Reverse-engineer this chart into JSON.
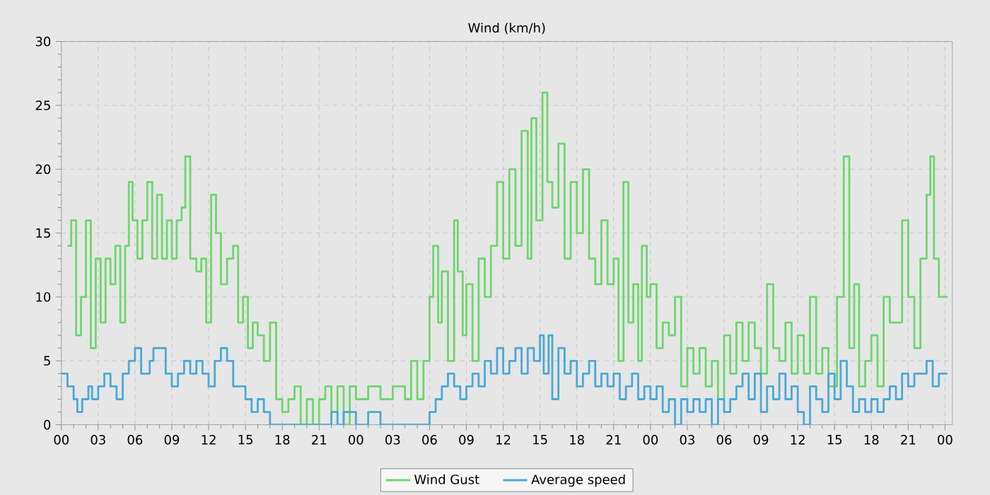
{
  "chart_data": {
    "type": "step",
    "title": "Wind (km/h)",
    "xlim": [
      0,
      72.6
    ],
    "ylim": [
      0,
      30
    ],
    "xticks": [
      {
        "value": 0,
        "label": "00"
      },
      {
        "value": 3,
        "label": "03"
      },
      {
        "value": 6,
        "label": "06"
      },
      {
        "value": 9,
        "label": "09"
      },
      {
        "value": 12,
        "label": "12"
      },
      {
        "value": 15,
        "label": "15"
      },
      {
        "value": 18,
        "label": "18"
      },
      {
        "value": 21,
        "label": "21"
      },
      {
        "value": 24,
        "label": "00"
      },
      {
        "value": 27,
        "label": "03"
      },
      {
        "value": 30,
        "label": "06"
      },
      {
        "value": 33,
        "label": "09"
      },
      {
        "value": 36,
        "label": "12"
      },
      {
        "value": 39,
        "label": "15"
      },
      {
        "value": 42,
        "label": "18"
      },
      {
        "value": 45,
        "label": "21"
      },
      {
        "value": 48,
        "label": "00"
      },
      {
        "value": 51,
        "label": "03"
      },
      {
        "value": 54,
        "label": "06"
      },
      {
        "value": 57,
        "label": "09"
      },
      {
        "value": 60,
        "label": "12"
      },
      {
        "value": 63,
        "label": "15"
      },
      {
        "value": 66,
        "label": "18"
      },
      {
        "value": 69,
        "label": "21"
      },
      {
        "value": 72,
        "label": "00"
      }
    ],
    "yticks": [
      0,
      5,
      10,
      15,
      20,
      25,
      30
    ],
    "grid": true,
    "legend": "bottom",
    "marker": "none",
    "line_style": "solid",
    "series": [
      {
        "name": "Wind Gust",
        "color": "#6fd66f",
        "x": [
          0.5,
          0.8,
          1.2,
          1.6,
          2.0,
          2.4,
          2.8,
          3.2,
          3.6,
          4.0,
          4.4,
          4.8,
          5.2,
          5.5,
          5.8,
          6.2,
          6.6,
          7.0,
          7.4,
          7.8,
          8.2,
          8.6,
          9.0,
          9.4,
          9.8,
          10.1,
          10.5,
          11.0,
          11.4,
          11.8,
          12.2,
          12.6,
          13.0,
          13.5,
          14.0,
          14.4,
          14.8,
          15.2,
          15.6,
          16.0,
          16.5,
          17.0,
          17.5,
          18.0,
          18.5,
          19.0,
          19.5,
          20.0,
          20.5,
          21.0,
          21.5,
          22.0,
          22.5,
          23.0,
          23.5,
          24.0,
          25.0,
          26.0,
          27.0,
          28.0,
          28.5,
          29.0,
          29.5,
          30.0,
          30.3,
          30.7,
          31.0,
          31.5,
          32.0,
          32.3,
          32.7,
          33.0,
          33.5,
          34.0,
          34.5,
          35.0,
          35.5,
          36.0,
          36.5,
          37.0,
          37.5,
          38.0,
          38.3,
          38.7,
          39.2,
          39.6,
          40.0,
          40.5,
          41.0,
          41.5,
          42.0,
          42.5,
          43.0,
          43.5,
          44.0,
          44.5,
          45.0,
          45.4,
          45.8,
          46.2,
          46.6,
          47.0,
          47.3,
          47.7,
          48.0,
          48.5,
          49.0,
          49.5,
          50.0,
          50.5,
          51.0,
          51.5,
          52.0,
          52.5,
          53.0,
          53.5,
          54.0,
          54.5,
          55.0,
          55.5,
          56.0,
          56.5,
          57.0,
          57.5,
          58.0,
          58.5,
          59.0,
          59.5,
          60.0,
          60.5,
          61.0,
          61.5,
          62.0,
          62.5,
          63.2,
          63.75,
          64.2,
          64.6,
          65.0,
          65.5,
          66.0,
          66.5,
          67.0,
          67.5,
          68.0,
          68.5,
          69.0,
          69.5,
          70.0,
          70.5,
          70.8,
          71.1,
          71.5,
          72.2
        ],
        "values": [
          14,
          16,
          7,
          10,
          16,
          6,
          13,
          8,
          13,
          11,
          14,
          8,
          14,
          19,
          16,
          13,
          16,
          19,
          13,
          18,
          13,
          16,
          13,
          16,
          17,
          21,
          13,
          12,
          13,
          8,
          18,
          15,
          11,
          13,
          14,
          8,
          10,
          6,
          8,
          7,
          5,
          8,
          2,
          1,
          2,
          3,
          0,
          2,
          0,
          2,
          3,
          1,
          3,
          0,
          3,
          2,
          3,
          2,
          3,
          2,
          5,
          2,
          5,
          10,
          14,
          8,
          12,
          5,
          16,
          12,
          7,
          11,
          5,
          13,
          10,
          14,
          19,
          13,
          20,
          14,
          23,
          13,
          24,
          16,
          26,
          19,
          17,
          22,
          13,
          19,
          15,
          20,
          13,
          11,
          16,
          11,
          13,
          5,
          19,
          8,
          11,
          5,
          14,
          10,
          11,
          6,
          8,
          7,
          10,
          3,
          6,
          4,
          6,
          3,
          5,
          2,
          7,
          4,
          8,
          5,
          8,
          6,
          4,
          11,
          6,
          5,
          8,
          4,
          7,
          4,
          10,
          4,
          6,
          3,
          10,
          21,
          6,
          11,
          3,
          5,
          7,
          3,
          10,
          8,
          8,
          16,
          10,
          6,
          13,
          18,
          21,
          13,
          10,
          10
        ]
      },
      {
        "name": "Average speed",
        "color": "#4ba8d8",
        "x": [
          0,
          0.5,
          1,
          1.3,
          1.7,
          2.2,
          2.5,
          3,
          3.5,
          4,
          4.5,
          5,
          5.5,
          6,
          6.5,
          7.2,
          7.5,
          8,
          8.5,
          9,
          9.5,
          10,
          10.5,
          11,
          11.5,
          12,
          12.5,
          13,
          13.5,
          14,
          15,
          15.5,
          16,
          16.5,
          17,
          22,
          22.5,
          23,
          24,
          25,
          26,
          30,
          30.5,
          31,
          31.5,
          32,
          32.5,
          33,
          33.5,
          34,
          34.5,
          35,
          35.5,
          36,
          36.5,
          37,
          37.5,
          38,
          38.5,
          39,
          39.3,
          39.7,
          40,
          40.5,
          41,
          41.5,
          42,
          42.5,
          43,
          43.5,
          44,
          44.5,
          45,
          45.5,
          46,
          46.5,
          47,
          47.5,
          48,
          48.5,
          49,
          49.5,
          50,
          50.5,
          51,
          51.5,
          52,
          52.5,
          53,
          53.5,
          54,
          54.5,
          55,
          55.5,
          56,
          56.5,
          57,
          57.5,
          58,
          58.5,
          59,
          59.5,
          60,
          60.5,
          61,
          61.5,
          62,
          62.5,
          63,
          63.5,
          64,
          64.5,
          65,
          65.5,
          66,
          66.5,
          67,
          67.5,
          68,
          68.5,
          69,
          69.5,
          70,
          70.5,
          71,
          71.5,
          72.2
        ],
        "values": [
          4,
          3,
          2,
          1,
          2,
          3,
          2,
          3,
          4,
          3,
          2,
          4,
          5,
          6,
          4,
          5,
          6,
          6,
          4,
          3,
          4,
          5,
          4,
          5,
          4,
          3,
          5,
          6,
          5,
          3,
          2,
          1,
          2,
          1,
          0,
          1,
          0,
          1,
          0,
          1,
          0,
          1,
          2,
          3,
          4,
          3,
          2,
          3,
          4,
          3,
          5,
          4,
          6,
          4,
          5,
          6,
          4,
          6,
          5,
          7,
          4,
          7,
          2,
          6,
          4,
          5,
          3,
          4,
          5,
          3,
          4,
          3,
          4,
          2,
          3,
          4,
          2,
          3,
          2,
          3,
          1,
          2,
          0,
          2,
          1,
          2,
          1,
          2,
          0,
          2,
          1,
          2,
          3,
          4,
          2,
          4,
          1,
          3,
          2,
          4,
          2,
          3,
          1,
          0,
          3,
          2,
          1,
          4,
          2,
          5,
          3,
          1,
          2,
          1,
          2,
          1,
          2,
          3,
          2,
          4,
          3,
          4,
          4,
          5,
          3,
          4,
          4
        ]
      }
    ]
  }
}
